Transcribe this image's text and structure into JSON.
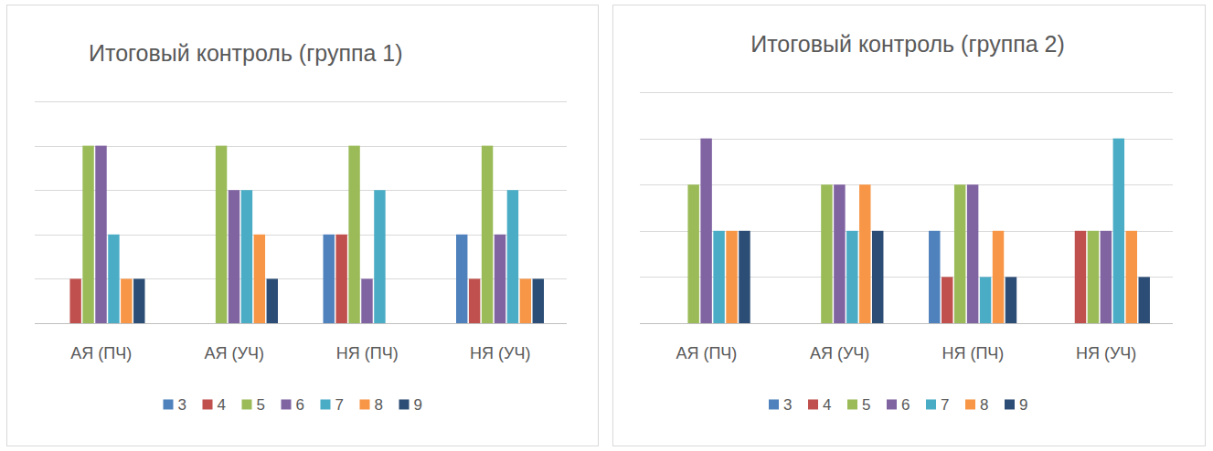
{
  "chart_data": [
    {
      "type": "bar",
      "title": "Итоговый контроль (группа 1)",
      "categories": [
        "АЯ (ПЧ)",
        "АЯ (УЧ)",
        "НЯ (ПЧ)",
        "НЯ (УЧ)"
      ],
      "series": [
        {
          "name": "3",
          "color": "#4f81bd",
          "values": [
            0,
            0,
            2,
            2
          ]
        },
        {
          "name": "4",
          "color": "#c0504d",
          "values": [
            1,
            0,
            2,
            1
          ]
        },
        {
          "name": "5",
          "color": "#9bbb59",
          "values": [
            4,
            4,
            4,
            4
          ]
        },
        {
          "name": "6",
          "color": "#8064a2",
          "values": [
            4,
            3,
            1,
            2
          ]
        },
        {
          "name": "7",
          "color": "#4bacc6",
          "values": [
            2,
            3,
            3,
            3
          ]
        },
        {
          "name": "8",
          "color": "#f79646",
          "values": [
            1,
            2,
            0,
            1
          ]
        },
        {
          "name": "9",
          "color": "#2c4d75",
          "values": [
            1,
            1,
            0,
            1
          ]
        }
      ],
      "ylim": [
        0,
        5
      ],
      "yticks": [
        0,
        1,
        2,
        3,
        4,
        5
      ],
      "grid": true,
      "tick_labels": "x",
      "legend": "bottom"
    },
    {
      "type": "bar",
      "title": "Итоговый контроль (группа 2)",
      "categories": [
        "АЯ (ПЧ)",
        "АЯ (УЧ)",
        "НЯ (ПЧ)",
        "НЯ (УЧ)"
      ],
      "series": [
        {
          "name": "3",
          "color": "#4f81bd",
          "values": [
            0,
            0,
            2,
            0
          ]
        },
        {
          "name": "4",
          "color": "#c0504d",
          "values": [
            0,
            0,
            1,
            2
          ]
        },
        {
          "name": "5",
          "color": "#9bbb59",
          "values": [
            3,
            3,
            3,
            2
          ]
        },
        {
          "name": "6",
          "color": "#8064a2",
          "values": [
            4,
            3,
            3,
            2
          ]
        },
        {
          "name": "7",
          "color": "#4bacc6",
          "values": [
            2,
            2,
            1,
            4
          ]
        },
        {
          "name": "8",
          "color": "#f79646",
          "values": [
            2,
            3,
            2,
            2
          ]
        },
        {
          "name": "9",
          "color": "#2c4d75",
          "values": [
            2,
            2,
            1,
            1
          ]
        }
      ],
      "ylim": [
        0,
        5
      ],
      "yticks": [
        0,
        1,
        2,
        3,
        4,
        5
      ],
      "grid": true,
      "tick_labels": "x",
      "legend": "bottom"
    }
  ]
}
